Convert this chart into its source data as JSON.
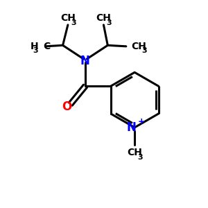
{
  "bg_color": "#ffffff",
  "atom_color_N": "#0000ff",
  "atom_color_O": "#ff0000",
  "atom_color_C": "#000000",
  "bond_color": "#000000",
  "line_width": 2.2,
  "figsize": [
    3.0,
    3.0
  ],
  "dpi": 100,
  "xlim": [
    0,
    10
  ],
  "ylim": [
    0,
    10
  ]
}
